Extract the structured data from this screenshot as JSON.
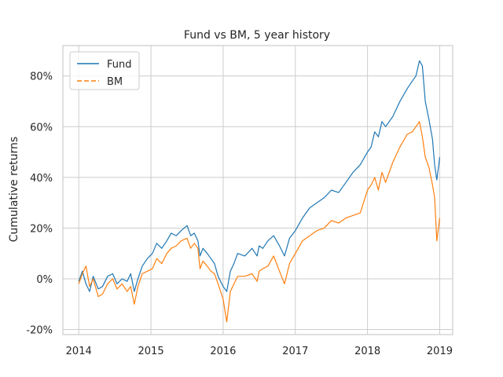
{
  "chart_data": {
    "type": "line",
    "title": "Fund vs BM, 5 year history",
    "xlabel": "",
    "ylabel": "Cumulative returns",
    "xlim": [
      2013.78,
      2019.18
    ],
    "ylim": [
      -22,
      92
    ],
    "x_ticks": [
      2014,
      2015,
      2016,
      2017,
      2018,
      2019
    ],
    "x_tick_labels": [
      "2014",
      "2015",
      "2016",
      "2017",
      "2018",
      "2019"
    ],
    "y_ticks": [
      -20,
      0,
      20,
      40,
      60,
      80
    ],
    "y_tick_labels": [
      "-20%",
      "0%",
      "20%",
      "40%",
      "60%",
      "80%"
    ],
    "grid": true,
    "legend": {
      "position": "top-left"
    },
    "series": [
      {
        "name": "Fund",
        "color": "#1f77b4",
        "line_style": "solid",
        "x": [
          2014.0,
          2014.05,
          2014.1,
          2014.15,
          2014.2,
          2014.27,
          2014.33,
          2014.4,
          2014.47,
          2014.53,
          2014.6,
          2014.67,
          2014.72,
          2014.77,
          2014.82,
          2014.88,
          2014.95,
          2015.02,
          2015.08,
          2015.15,
          2015.22,
          2015.28,
          2015.35,
          2015.42,
          2015.5,
          2015.55,
          2015.6,
          2015.65,
          2015.68,
          2015.72,
          2015.78,
          2015.83,
          2015.88,
          2015.93,
          2016.0,
          2016.05,
          2016.1,
          2016.15,
          2016.2,
          2016.3,
          2016.4,
          2016.47,
          2016.5,
          2016.55,
          2016.62,
          2016.7,
          2016.78,
          2016.85,
          2016.92,
          2017.0,
          2017.1,
          2017.2,
          2017.3,
          2017.4,
          2017.5,
          2017.6,
          2017.7,
          2017.8,
          2017.9,
          2018.0,
          2018.05,
          2018.1,
          2018.15,
          2018.2,
          2018.25,
          2018.35,
          2018.45,
          2018.55,
          2018.62,
          2018.67,
          2018.72,
          2018.76,
          2018.8,
          2018.85,
          2018.9,
          2018.93,
          2018.96,
          2019.0
        ],
        "y": [
          -1,
          3,
          -2,
          -5,
          1,
          -4,
          -3,
          1,
          2,
          -2,
          0,
          -1,
          2,
          -5,
          0,
          5,
          8,
          10,
          14,
          12,
          15,
          18,
          17,
          19,
          21,
          17,
          18,
          15,
          9,
          12,
          10,
          8,
          6,
          1,
          -3,
          -5,
          3,
          6,
          10,
          9,
          12,
          9,
          13,
          12,
          15,
          17,
          13,
          9,
          16,
          19,
          24,
          28,
          30,
          32,
          35,
          34,
          38,
          42,
          45,
          50,
          52,
          58,
          56,
          62,
          60,
          64,
          70,
          75,
          78,
          80,
          86,
          84,
          70,
          63,
          55,
          45,
          39,
          48
        ]
      },
      {
        "name": "BM",
        "color": "#ff7f0e",
        "line_style": "dashed",
        "x": [
          2014.0,
          2014.05,
          2014.1,
          2014.15,
          2014.2,
          2014.27,
          2014.33,
          2014.4,
          2014.47,
          2014.53,
          2014.6,
          2014.67,
          2014.72,
          2014.77,
          2014.82,
          2014.88,
          2014.95,
          2015.02,
          2015.08,
          2015.15,
          2015.22,
          2015.28,
          2015.35,
          2015.42,
          2015.5,
          2015.55,
          2015.6,
          2015.65,
          2015.68,
          2015.72,
          2015.78,
          2015.83,
          2015.88,
          2015.93,
          2016.0,
          2016.05,
          2016.1,
          2016.15,
          2016.2,
          2016.3,
          2016.4,
          2016.47,
          2016.5,
          2016.55,
          2016.62,
          2016.7,
          2016.78,
          2016.85,
          2016.92,
          2017.0,
          2017.1,
          2017.2,
          2017.3,
          2017.4,
          2017.5,
          2017.6,
          2017.7,
          2017.8,
          2017.9,
          2018.0,
          2018.05,
          2018.1,
          2018.15,
          2018.2,
          2018.25,
          2018.35,
          2018.45,
          2018.55,
          2018.62,
          2018.67,
          2018.72,
          2018.76,
          2018.8,
          2018.85,
          2018.9,
          2018.93,
          2018.96,
          2019.0
        ],
        "y": [
          -2,
          2,
          5,
          -3,
          0,
          -7,
          -6,
          -2,
          0,
          -4,
          -2,
          -5,
          -3,
          -10,
          -3,
          2,
          3,
          4,
          8,
          6,
          10,
          12,
          13,
          15,
          16,
          12,
          14,
          12,
          4,
          7,
          5,
          3,
          2,
          -2,
          -8,
          -17,
          -5,
          -2,
          1,
          1,
          2,
          -1,
          3,
          4,
          5,
          9,
          3,
          -2,
          6,
          10,
          15,
          17,
          19,
          20,
          23,
          22,
          24,
          25,
          26,
          35,
          37,
          40,
          35,
          42,
          38,
          46,
          52,
          57,
          58,
          60,
          62,
          56,
          48,
          44,
          37,
          32,
          15,
          24
        ]
      }
    ]
  }
}
